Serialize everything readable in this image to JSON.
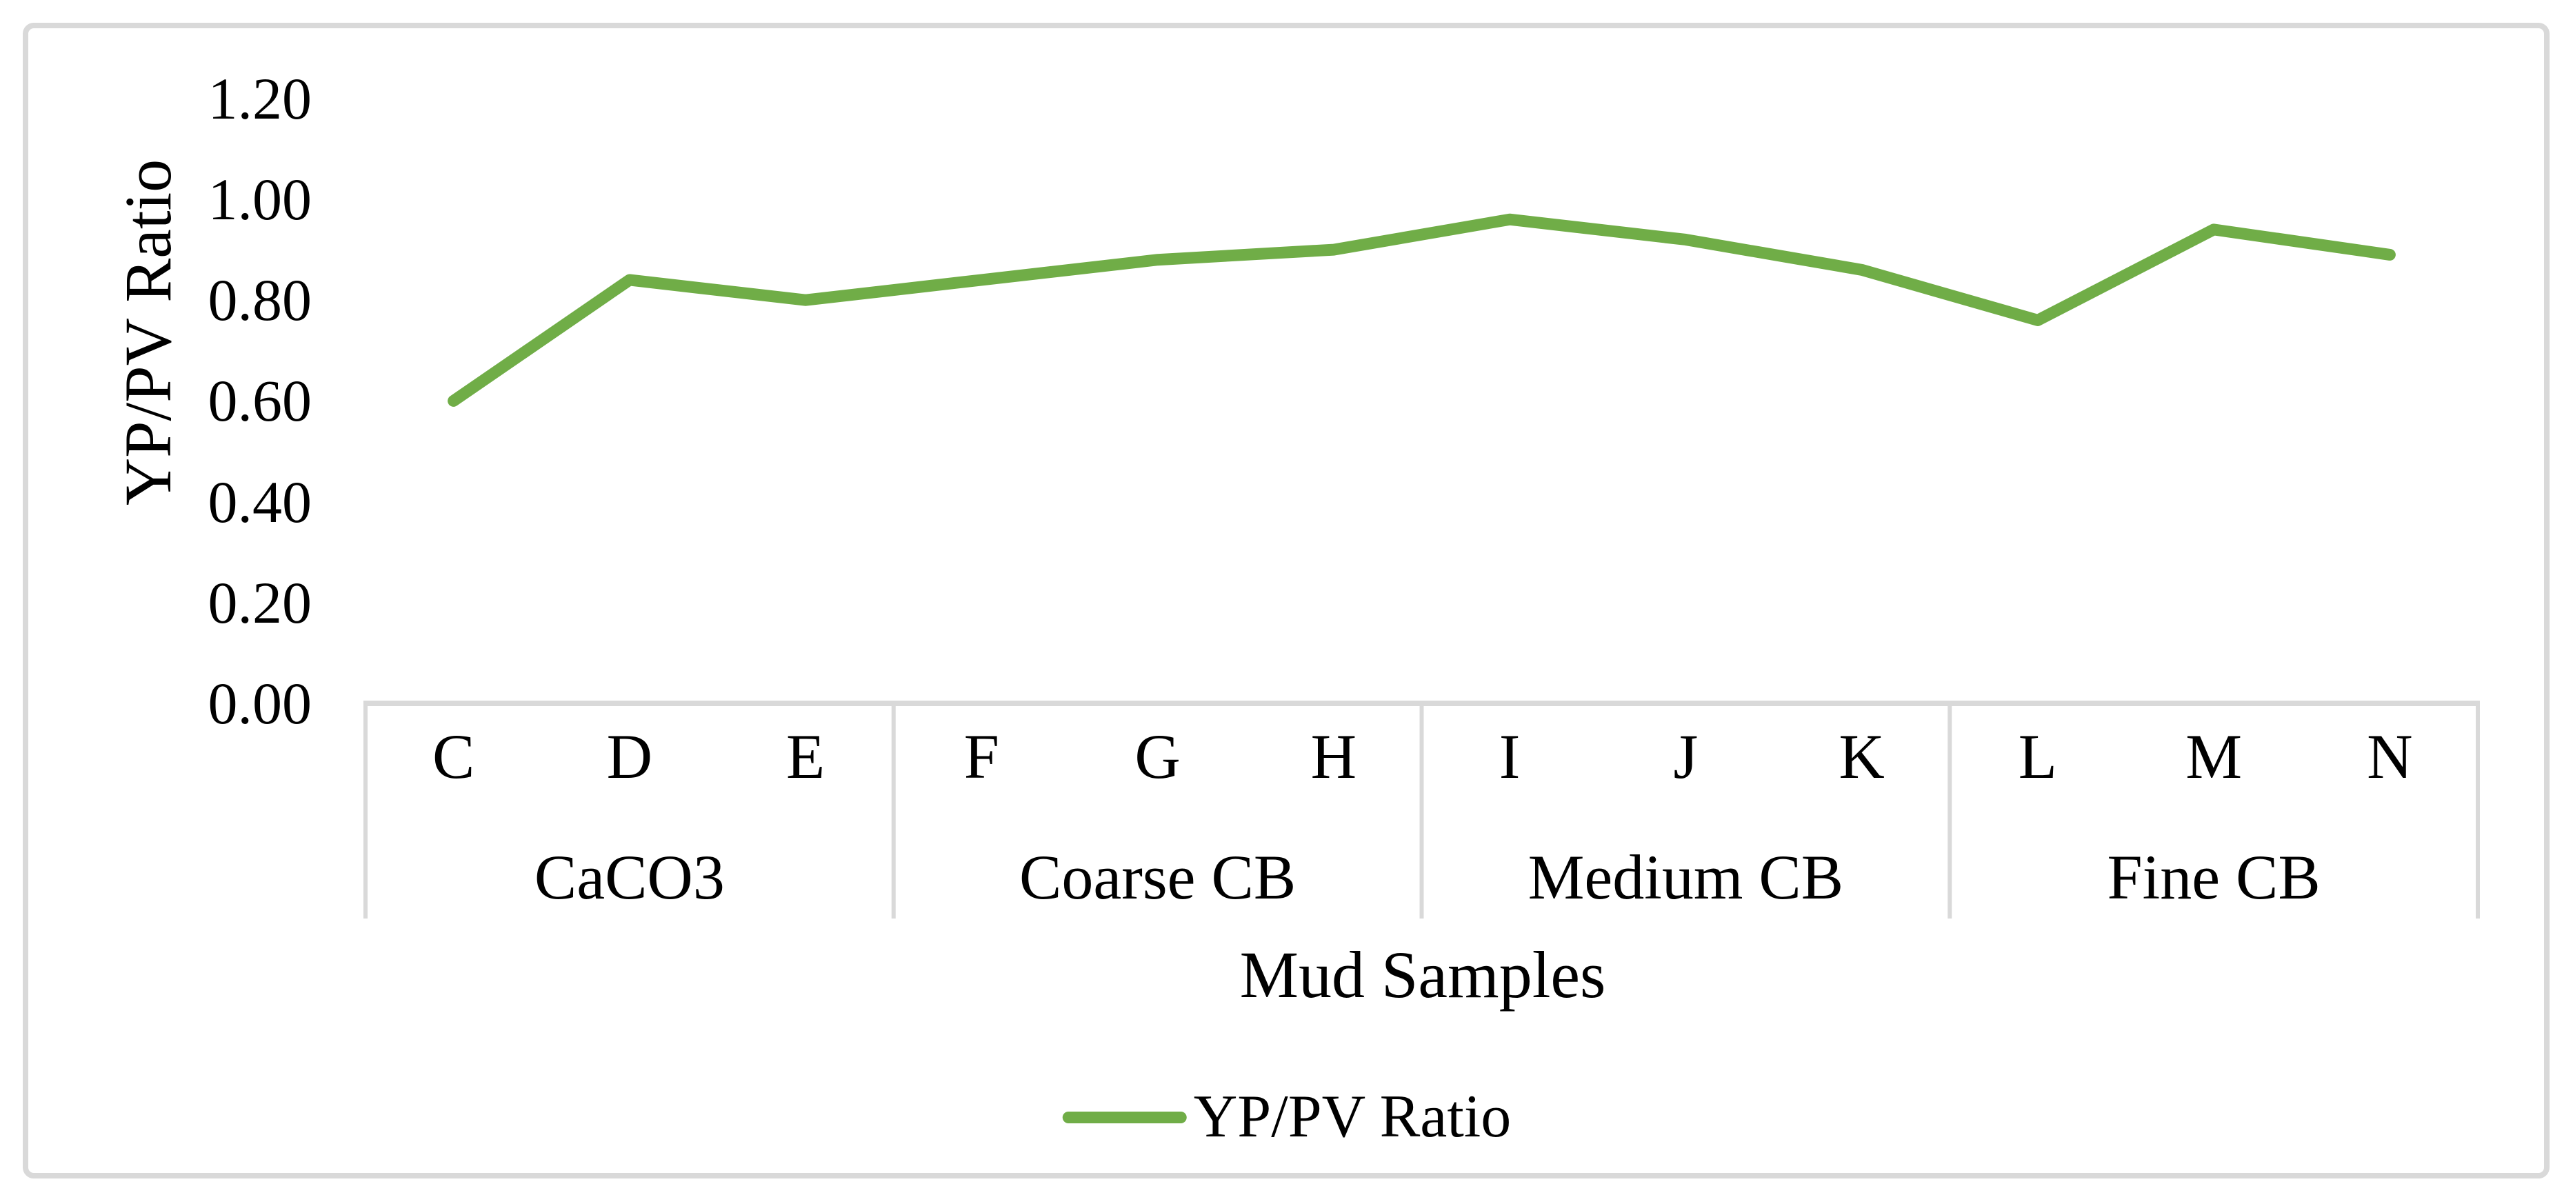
{
  "chart_data": {
    "type": "line",
    "title": "",
    "categories": [
      "C",
      "D",
      "E",
      "F",
      "G",
      "H",
      "I",
      "J",
      "K",
      "L",
      "M",
      "N"
    ],
    "category_groups": [
      {
        "label": "CaCO3",
        "span": 3
      },
      {
        "label": "Coarse CB",
        "span": 3
      },
      {
        "label": "Medium CB",
        "span": 3
      },
      {
        "label": "Fine CB",
        "span": 3
      }
    ],
    "series": [
      {
        "name": "YP/PV Ratio",
        "values": [
          0.6,
          0.84,
          0.8,
          0.84,
          0.88,
          0.9,
          0.96,
          0.92,
          0.86,
          0.76,
          0.94,
          0.89
        ],
        "color": "#70AD47"
      }
    ],
    "xlabel": "Mud Samples",
    "ylabel": "YP/PV Ratio",
    "y_tick_labels": [
      "1.20",
      "1.00",
      "0.80",
      "0.60",
      "0.40",
      "0.20",
      "0.00"
    ],
    "y_tick_values": [
      1.2,
      1.0,
      0.8,
      0.6,
      0.4,
      0.2,
      0.0
    ],
    "ylim": [
      0.0,
      1.2
    ],
    "grid": "off",
    "legend": {
      "position": "bottom",
      "entries": [
        {
          "label": "YP/PV Ratio",
          "color": "#70AD47"
        }
      ]
    }
  },
  "colors": {
    "line": "#70AD47",
    "axis_line": "#D9D9D9",
    "separator_line": "#D9D9D9",
    "figure_border": "#D9D9D9",
    "text": "#000000",
    "background": "#FFFFFF"
  }
}
